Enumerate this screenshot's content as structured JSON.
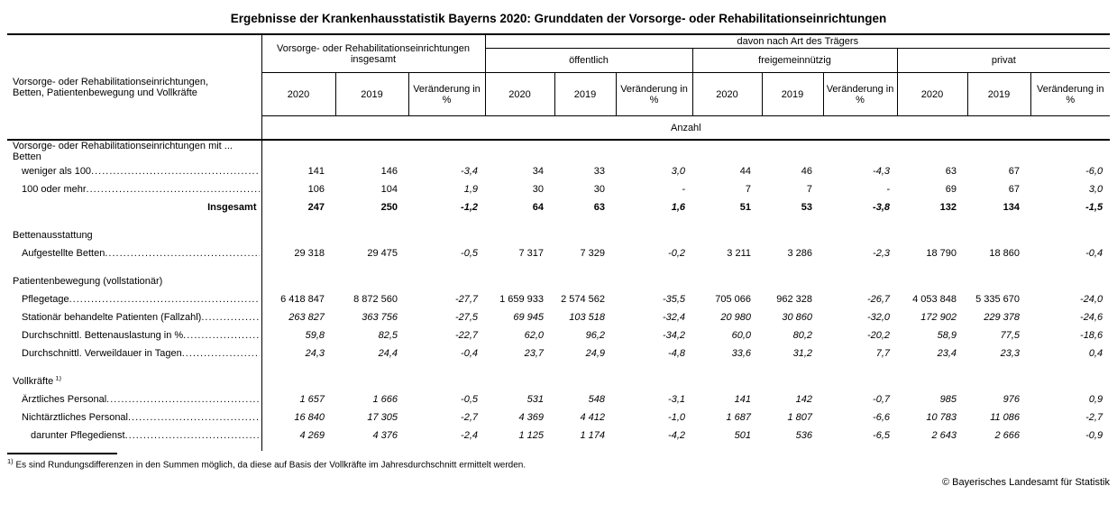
{
  "title": "Ergebnisse der Krankenhausstatistik Bayerns 2020: Grunddaten der Vorsorge- oder Rehabilitationseinrichtungen",
  "header": {
    "stub": "Vorsorge- oder Rehabilitationseinrichtungen,\nBetten, Patientenbewegung und Vollkräfte",
    "group_total": "Vorsorge- oder Rehabilitationseinrichtungen insgesamt",
    "group_davon": "davon nach Art des Trägers",
    "subgroups": [
      "öffentlich",
      "freigemeinnützig",
      "privat"
    ],
    "year_cols": [
      "2020",
      "2019",
      "Veränderung in %"
    ],
    "unit_row": "Anzahl"
  },
  "table": {
    "rows": [
      {
        "kind": "section",
        "label": "Vorsorge- oder Rehabilitationseinrichtungen mit ... Betten",
        "indent": 0,
        "gap": false
      },
      {
        "kind": "data",
        "label": "weniger als 100",
        "indent": 1,
        "leader": true,
        "style": "plain",
        "values": [
          "141",
          "146",
          "-3,4",
          "34",
          "33",
          "3,0",
          "44",
          "46",
          "-4,3",
          "63",
          "67",
          "-6,0"
        ]
      },
      {
        "kind": "data",
        "label": "100 oder mehr",
        "indent": 1,
        "leader": true,
        "style": "plain",
        "values": [
          "106",
          "104",
          "1,9",
          "30",
          "30",
          "-",
          "7",
          "7",
          "-",
          "69",
          "67",
          "3,0"
        ]
      },
      {
        "kind": "total",
        "label": "Insgesamt",
        "indent": 0,
        "leader": false,
        "style": "total",
        "values": [
          "247",
          "250",
          "-1,2",
          "64",
          "63",
          "1,6",
          "51",
          "53",
          "-3,8",
          "132",
          "134",
          "-1,5"
        ]
      },
      {
        "kind": "section",
        "label": "Bettenausstattung",
        "indent": 0,
        "gap": true
      },
      {
        "kind": "data",
        "label": "Aufgestellte Betten",
        "indent": 1,
        "leader": true,
        "style": "plain",
        "values": [
          "29 318",
          "29 475",
          "-0,5",
          "7 317",
          "7 329",
          "-0,2",
          "3 211",
          "3 286",
          "-2,3",
          "18 790",
          "18 860",
          "-0,4"
        ]
      },
      {
        "kind": "section",
        "label": "Patientenbewegung (vollstationär)",
        "indent": 0,
        "gap": true
      },
      {
        "kind": "data",
        "label": "Pflegetage",
        "indent": 1,
        "leader": true,
        "style": "plain",
        "values": [
          "6 418 847",
          "8 872 560",
          "-27,7",
          "1 659 933",
          "2 574 562",
          "-35,5",
          "705 066",
          "962 328",
          "-26,7",
          "4 053 848",
          "5 335 670",
          "-24,0"
        ]
      },
      {
        "kind": "data",
        "label": "Stationär behandelte Patienten (Fallzahl)",
        "indent": 1,
        "leader": true,
        "style": "italic",
        "values": [
          "263 827",
          "363 756",
          "-27,5",
          "69 945",
          "103 518",
          "-32,4",
          "20 980",
          "30 860",
          "-32,0",
          "172 902",
          "229 378",
          "-24,6"
        ]
      },
      {
        "kind": "data",
        "label": "Durchschnittl. Bettenauslastung in %",
        "indent": 1,
        "leader": true,
        "style": "italic",
        "values": [
          "59,8",
          "82,5",
          "-22,7",
          "62,0",
          "96,2",
          "-34,2",
          "60,0",
          "80,2",
          "-20,2",
          "58,9",
          "77,5",
          "-18,6"
        ]
      },
      {
        "kind": "data",
        "label": "Durchschnittl. Verweildauer in Tagen",
        "indent": 1,
        "leader": true,
        "style": "italic",
        "values": [
          "24,3",
          "24,4",
          "-0,4",
          "23,7",
          "24,9",
          "-4,8",
          "33,6",
          "31,2",
          "7,7",
          "23,4",
          "23,3",
          "0,4"
        ]
      },
      {
        "kind": "section",
        "label": "Vollkräfte",
        "sup": "1)",
        "indent": 0,
        "gap": true
      },
      {
        "kind": "data",
        "label": "Ärztliches Personal",
        "indent": 1,
        "leader": true,
        "style": "italic",
        "values": [
          "1 657",
          "1 666",
          "-0,5",
          "531",
          "548",
          "-3,1",
          "141",
          "142",
          "-0,7",
          "985",
          "976",
          "0,9"
        ]
      },
      {
        "kind": "data",
        "label": "Nichtärztliches Personal",
        "indent": 1,
        "leader": true,
        "style": "italic",
        "values": [
          "16 840",
          "17 305",
          "-2,7",
          "4 369",
          "4 412",
          "-1,0",
          "1 687",
          "1 807",
          "-6,6",
          "10 783",
          "11 086",
          "-2,7"
        ]
      },
      {
        "kind": "data",
        "label": "darunter Pflegedienst",
        "indent": 2,
        "leader": true,
        "style": "italic",
        "values": [
          "4 269",
          "4 376",
          "-2,4",
          "1 125",
          "1 174",
          "-4,2",
          "501",
          "536",
          "-6,5",
          "2 643",
          "2 666",
          "-0,9"
        ]
      }
    ]
  },
  "footnote": {
    "marker": "1)",
    "text": "Es sind Rundungsdifferenzen in den Summen möglich, da diese auf Basis der Vollkräfte im Jahresdurchschnitt ermittelt werden."
  },
  "copyright": "© Bayerisches Landesamt für Statistik"
}
